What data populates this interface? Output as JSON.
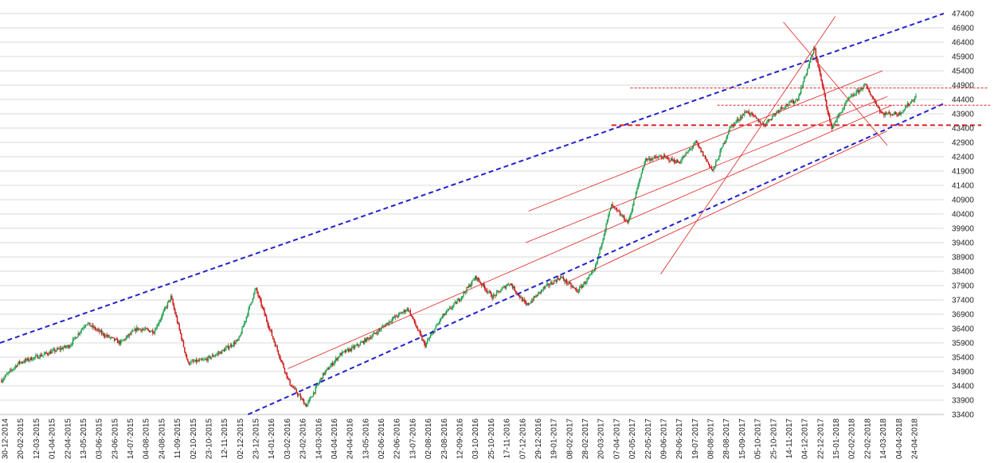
{
  "chart_data": {
    "type": "candlestick",
    "title": "",
    "xlabel": "",
    "ylabel": "",
    "ylim": [
      33400,
      47400
    ],
    "y_tick_step": 500,
    "grid": "horizontal",
    "legend": "none",
    "colors": {
      "up": "#1a9e4a",
      "down": "#cc1111",
      "channel": "#2222cc",
      "trendline": "#dd2222",
      "grid": "#d9d9d9"
    },
    "x_tick_labels": [
      "30-12-2014",
      "20-02-2015",
      "12-03-2015",
      "01-04-2015",
      "22-04-2015",
      "13-05-2015",
      "03-06-2015",
      "23-06-2015",
      "14-07-2015",
      "04-08-2015",
      "24-08-2015",
      "11-09-2015",
      "02-10-2015",
      "23-10-2015",
      "12-11-2015",
      "02-12-2015",
      "23-12-2015",
      "14-01-2016",
      "03-02-2016",
      "23-02-2016",
      "14-03-2016",
      "04-04-2016",
      "24-04-2016",
      "13-05-2016",
      "02-06-2016",
      "22-06-2016",
      "13-07-2016",
      "02-08-2016",
      "23-08-2016",
      "12-09-2016",
      "03-10-2016",
      "25-10-2016",
      "17-11-2016",
      "07-12-2016",
      "29-12-2016",
      "19-01-2017",
      "08-02-2017",
      "28-02-2017",
      "20-03-2017",
      "07-04-2017",
      "02-05-2017",
      "22-05-2017",
      "09-06-2017",
      "29-06-2017",
      "19-07-2017",
      "08-08-2017",
      "28-08-2017",
      "15-09-2017",
      "05-10-2017",
      "25-10-2017",
      "14-11-2017",
      "04-12-2017",
      "22-12-2017",
      "15-01-2018",
      "02-02-2018",
      "22-02-2018",
      "14-03-2018",
      "04-04-2018",
      "24-04-2018"
    ],
    "price_path": [
      [
        0,
        34600
      ],
      [
        1,
        35200
      ],
      [
        2,
        35400
      ],
      [
        3,
        35600
      ],
      [
        4,
        35800
      ],
      [
        5,
        36600
      ],
      [
        6,
        36200
      ],
      [
        7,
        35900
      ],
      [
        8,
        36400
      ],
      [
        9,
        36300
      ],
      [
        10,
        37500
      ],
      [
        11,
        35200
      ],
      [
        12,
        35300
      ],
      [
        13,
        35600
      ],
      [
        14,
        36000
      ],
      [
        15,
        37800
      ],
      [
        16,
        36100
      ],
      [
        17,
        34500
      ],
      [
        18,
        33700
      ],
      [
        19,
        34800
      ],
      [
        20,
        35500
      ],
      [
        21,
        35800
      ],
      [
        22,
        36200
      ],
      [
        23,
        36700
      ],
      [
        24,
        37100
      ],
      [
        25,
        35800
      ],
      [
        26,
        36800
      ],
      [
        27,
        37400
      ],
      [
        28,
        38200
      ],
      [
        29,
        37500
      ],
      [
        30,
        38000
      ],
      [
        31,
        37200
      ],
      [
        32,
        37800
      ],
      [
        33,
        38200
      ],
      [
        34,
        37700
      ],
      [
        35,
        38400
      ],
      [
        36,
        40700
      ],
      [
        37,
        40100
      ],
      [
        38,
        42300
      ],
      [
        39,
        42400
      ],
      [
        40,
        42200
      ],
      [
        41,
        42900
      ],
      [
        42,
        41900
      ],
      [
        43,
        43400
      ],
      [
        44,
        44000
      ],
      [
        45,
        43500
      ],
      [
        46,
        44100
      ],
      [
        47,
        44400
      ],
      [
        48,
        46200
      ],
      [
        49,
        43400
      ],
      [
        50,
        44400
      ],
      [
        51,
        44900
      ],
      [
        52,
        43900
      ],
      [
        53,
        43900
      ],
      [
        54,
        44500
      ]
    ],
    "channel_upper": {
      "from": [
        "30-12-2014",
        35900
      ],
      "to": [
        "24-04-2018",
        47400
      ]
    },
    "channel_lower": {
      "from": [
        "02-12-2015",
        33400
      ],
      "to": [
        "24-04-2018",
        43700
      ]
    },
    "horizontal_levels": [
      44800,
      44200,
      43500
    ],
    "trendlines": [
      {
        "from": [
          0.305,
          35000
        ],
        "to": [
          0.945,
          44200
        ]
      },
      {
        "from": [
          0.56,
          40500
        ],
        "to": [
          0.935,
          45400
        ]
      },
      {
        "from": [
          0.557,
          39400
        ],
        "to": [
          0.94,
          44500
        ]
      },
      {
        "from": [
          0.6,
          38000
        ],
        "to": [
          0.94,
          43300
        ]
      },
      {
        "from": [
          0.7,
          38300
        ],
        "to": [
          0.885,
          47300
        ]
      },
      {
        "from": [
          0.83,
          47100
        ],
        "to": [
          0.94,
          42800
        ]
      }
    ]
  }
}
